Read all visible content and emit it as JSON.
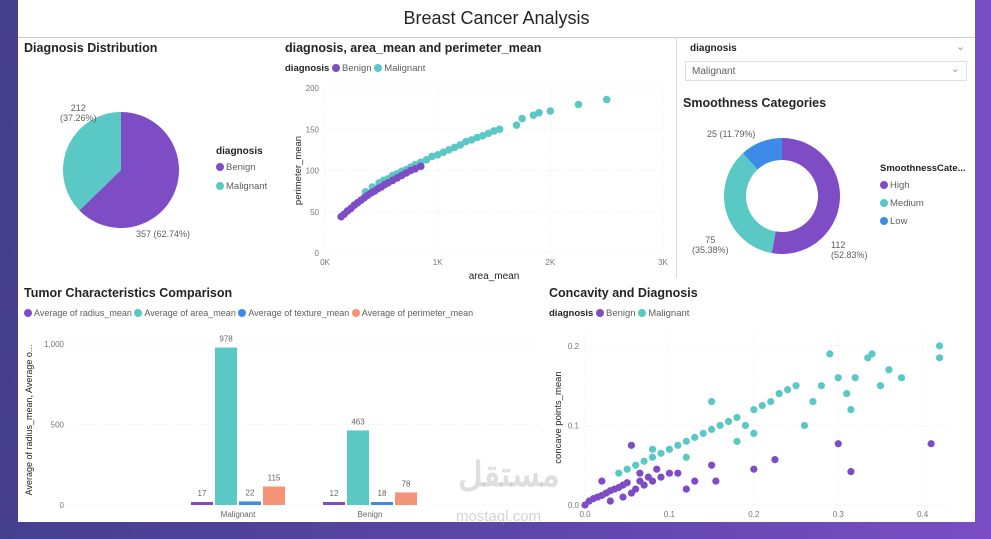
{
  "title": "Breast Cancer Analysis",
  "colors": {
    "benign": "#7e4cc4",
    "malignant": "#5ac8c4",
    "low": "#3d8ae8",
    "salmon": "#f59377"
  },
  "slicer": {
    "label": "diagnosis",
    "value": "Malignant",
    "icon": "chevron-down-icon"
  },
  "watermark": {
    "arabic": "مستقل",
    "latin": "mostaql.com"
  },
  "chart_data": [
    {
      "id": "pie",
      "type": "pie",
      "title": "Diagnosis Distribution",
      "legend_title": "diagnosis",
      "legend_placement": "right",
      "slices": [
        {
          "name": "Benign",
          "value": 357,
          "label": "357 (62.74%)"
        },
        {
          "name": "Malignant",
          "value": 212,
          "label_value": "212",
          "label_pct": "(37.26%)"
        }
      ]
    },
    {
      "id": "scatter1",
      "type": "scatter",
      "title": "diagnosis, area_mean and perimeter_mean",
      "legend_title": "diagnosis",
      "legend_placement": "top-left",
      "xlabel": "area_mean",
      "ylabel": "perimeter_mean",
      "xlim": [
        0,
        3000
      ],
      "ylim": [
        0,
        200
      ],
      "xticks": [
        "0K",
        "1K",
        "2K",
        "3K"
      ],
      "yticks": [
        "0",
        "50",
        "100",
        "150",
        "200"
      ],
      "series": [
        {
          "name": "Benign",
          "points": [
            [
              143,
              44
            ],
            [
              170,
              47
            ],
            [
              200,
              51
            ],
            [
              230,
              54
            ],
            [
              260,
              58
            ],
            [
              290,
              61
            ],
            [
              320,
              64
            ],
            [
              350,
              67
            ],
            [
              380,
              70
            ],
            [
              410,
              73
            ],
            [
              440,
              75
            ],
            [
              470,
              78
            ],
            [
              500,
              80
            ],
            [
              530,
              83
            ],
            [
              560,
              85
            ],
            [
              600,
              88
            ],
            [
              640,
              91
            ],
            [
              680,
              94
            ],
            [
              720,
              97
            ],
            [
              760,
              100
            ],
            [
              800,
              102
            ],
            [
              850,
              105
            ]
          ]
        },
        {
          "name": "Malignant",
          "points": [
            [
              360,
              74
            ],
            [
              420,
              80
            ],
            [
              480,
              85
            ],
            [
              520,
              88
            ],
            [
              560,
              90
            ],
            [
              600,
              94
            ],
            [
              640,
              96
            ],
            [
              680,
              99
            ],
            [
              720,
              101
            ],
            [
              760,
              104
            ],
            [
              800,
              107
            ],
            [
              850,
              110
            ],
            [
              900,
              113
            ],
            [
              950,
              117
            ],
            [
              1000,
              119
            ],
            [
              1050,
              122
            ],
            [
              1100,
              125
            ],
            [
              1150,
              128
            ],
            [
              1200,
              131
            ],
            [
              1250,
              135
            ],
            [
              1300,
              137
            ],
            [
              1350,
              140
            ],
            [
              1400,
              142
            ],
            [
              1450,
              145
            ],
            [
              1500,
              148
            ],
            [
              1550,
              150
            ],
            [
              1700,
              155
            ],
            [
              1750,
              163
            ],
            [
              1850,
              167
            ],
            [
              1900,
              170
            ],
            [
              2000,
              172
            ],
            [
              2250,
              180
            ],
            [
              2500,
              186
            ]
          ]
        }
      ]
    },
    {
      "id": "donut",
      "type": "pie",
      "title": "Smoothness Categories",
      "legend_title": "SmoothnessCate...",
      "legend_placement": "right",
      "slices": [
        {
          "name": "High",
          "value": 112,
          "label_value": "112",
          "label_pct": "(52.83%)"
        },
        {
          "name": "Medium",
          "value": 75,
          "label_value": "75",
          "label_pct": "(35.38%)"
        },
        {
          "name": "Low",
          "value": 25,
          "label": "25 (11.79%)"
        }
      ]
    },
    {
      "id": "bars",
      "type": "bar",
      "title": "Tumor Characteristics Comparison",
      "legend_placement": "top-left",
      "xlabel": "diagnosis",
      "ylabel": "Average of radius_mean, Average o...",
      "ylim": [
        0,
        1000
      ],
      "yticks": [
        "0",
        "500",
        "1,000"
      ],
      "categories": [
        "Malignant",
        "Benign"
      ],
      "series": [
        {
          "name": "Average of radius_mean",
          "values": [
            17,
            12
          ]
        },
        {
          "name": "Average of area_mean",
          "values": [
            978,
            463
          ]
        },
        {
          "name": "Average of texture_mean",
          "values": [
            22,
            18
          ]
        },
        {
          "name": "Average of perimeter_mean",
          "values": [
            115,
            78
          ]
        }
      ]
    },
    {
      "id": "scatter2",
      "type": "scatter",
      "title": "Concavity and Diagnosis",
      "legend_title": "diagnosis",
      "legend_placement": "top-left",
      "xlabel": "concavity_mean",
      "ylabel": "concave points_mean",
      "xlim": [
        0,
        0.43
      ],
      "ylim": [
        0,
        0.22
      ],
      "xticks": [
        "0.0",
        "0.1",
        "0.2",
        "0.3",
        "0.4"
      ],
      "yticks": [
        "0.0",
        "0.1",
        "0.2"
      ],
      "series": [
        {
          "name": "Benign",
          "points": [
            [
              0.0,
              0.0
            ],
            [
              0.005,
              0.005
            ],
            [
              0.01,
              0.008
            ],
            [
              0.015,
              0.01
            ],
            [
              0.02,
              0.012
            ],
            [
              0.025,
              0.015
            ],
            [
              0.03,
              0.018
            ],
            [
              0.035,
              0.02
            ],
            [
              0.04,
              0.022
            ],
            [
              0.045,
              0.025
            ],
            [
              0.05,
              0.028
            ],
            [
              0.055,
              0.015
            ],
            [
              0.06,
              0.02
            ],
            [
              0.065,
              0.03
            ],
            [
              0.07,
              0.025
            ],
            [
              0.075,
              0.035
            ],
            [
              0.08,
              0.03
            ],
            [
              0.09,
              0.035
            ],
            [
              0.1,
              0.04
            ],
            [
              0.11,
              0.04
            ],
            [
              0.12,
              0.02
            ],
            [
              0.13,
              0.03
            ],
            [
              0.15,
              0.05
            ],
            [
              0.155,
              0.03
            ],
            [
              0.2,
              0.045
            ],
            [
              0.225,
              0.057
            ],
            [
              0.055,
              0.075
            ],
            [
              0.3,
              0.077
            ],
            [
              0.315,
              0.042
            ],
            [
              0.41,
              0.077
            ],
            [
              0.02,
              0.03
            ],
            [
              0.03,
              0.005
            ],
            [
              0.045,
              0.01
            ],
            [
              0.065,
              0.04
            ],
            [
              0.085,
              0.045
            ]
          ]
        },
        {
          "name": "Malignant",
          "points": [
            [
              0.04,
              0.04
            ],
            [
              0.05,
              0.045
            ],
            [
              0.06,
              0.05
            ],
            [
              0.07,
              0.055
            ],
            [
              0.08,
              0.06
            ],
            [
              0.09,
              0.065
            ],
            [
              0.1,
              0.07
            ],
            [
              0.11,
              0.075
            ],
            [
              0.12,
              0.08
            ],
            [
              0.13,
              0.085
            ],
            [
              0.14,
              0.09
            ],
            [
              0.15,
              0.095
            ],
            [
              0.16,
              0.1
            ],
            [
              0.17,
              0.105
            ],
            [
              0.18,
              0.11
            ],
            [
              0.19,
              0.1
            ],
            [
              0.2,
              0.12
            ],
            [
              0.21,
              0.125
            ],
            [
              0.22,
              0.13
            ],
            [
              0.23,
              0.14
            ],
            [
              0.24,
              0.145
            ],
            [
              0.25,
              0.15
            ],
            [
              0.27,
              0.13
            ],
            [
              0.28,
              0.15
            ],
            [
              0.29,
              0.19
            ],
            [
              0.3,
              0.16
            ],
            [
              0.31,
              0.14
            ],
            [
              0.315,
              0.12
            ],
            [
              0.32,
              0.16
            ],
            [
              0.335,
              0.185
            ],
            [
              0.34,
              0.19
            ],
            [
              0.35,
              0.15
            ],
            [
              0.36,
              0.17
            ],
            [
              0.375,
              0.16
            ],
            [
              0.42,
              0.2
            ],
            [
              0.42,
              0.185
            ],
            [
              0.18,
              0.08
            ],
            [
              0.2,
              0.09
            ],
            [
              0.15,
              0.13
            ],
            [
              0.26,
              0.1
            ],
            [
              0.12,
              0.06
            ],
            [
              0.08,
              0.07
            ]
          ]
        }
      ]
    }
  ]
}
